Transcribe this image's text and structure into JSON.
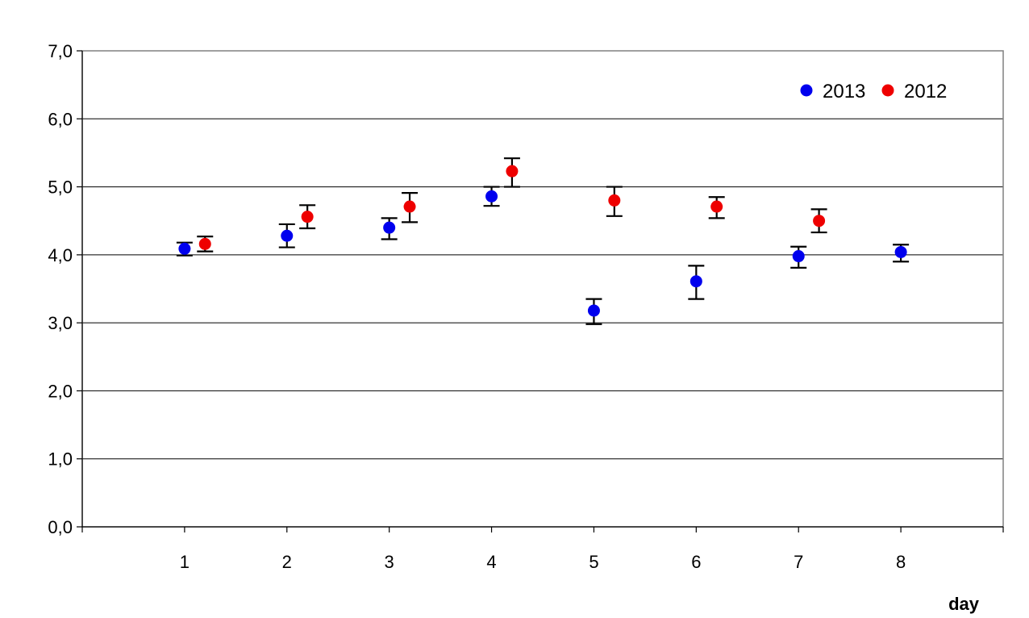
{
  "chart_data": {
    "type": "scatter",
    "xlabel": "day",
    "ylabel": "",
    "xlim": [
      0,
      9
    ],
    "ylim": [
      0,
      7
    ],
    "x_ticks": [
      1,
      2,
      3,
      4,
      5,
      6,
      7,
      8
    ],
    "y_ticks": [
      "0,0",
      "1,0",
      "2,0",
      "3,0",
      "4,0",
      "5,0",
      "6,0",
      "7,0"
    ],
    "grid": "horizontal",
    "legend_position": "top-right",
    "series": [
      {
        "name": "2013",
        "color": "#0000ee",
        "points": [
          {
            "x": 1,
            "y": 4.09,
            "lo": 3.99,
            "hi": 4.18
          },
          {
            "x": 2,
            "y": 4.28,
            "lo": 4.11,
            "hi": 4.45
          },
          {
            "x": 3,
            "y": 4.4,
            "lo": 4.23,
            "hi": 4.54
          },
          {
            "x": 4,
            "y": 4.86,
            "lo": 4.72,
            "hi": 5.0
          },
          {
            "x": 5,
            "y": 3.18,
            "lo": 2.98,
            "hi": 3.35
          },
          {
            "x": 6,
            "y": 3.61,
            "lo": 3.35,
            "hi": 3.84
          },
          {
            "x": 7,
            "y": 3.98,
            "lo": 3.81,
            "hi": 4.12
          },
          {
            "x": 8,
            "y": 4.04,
            "lo": 3.9,
            "hi": 4.15
          }
        ]
      },
      {
        "name": "2012",
        "color": "#ee0000",
        "points": [
          {
            "x": 1.2,
            "y": 4.16,
            "lo": 4.05,
            "hi": 4.27
          },
          {
            "x": 2.2,
            "y": 4.56,
            "lo": 4.39,
            "hi": 4.73
          },
          {
            "x": 3.2,
            "y": 4.71,
            "lo": 4.48,
            "hi": 4.91
          },
          {
            "x": 4.2,
            "y": 5.23,
            "lo": 5.0,
            "hi": 5.42
          },
          {
            "x": 5.2,
            "y": 4.8,
            "lo": 4.57,
            "hi": 5.0
          },
          {
            "x": 6.2,
            "y": 4.71,
            "lo": 4.54,
            "hi": 4.85
          },
          {
            "x": 7.2,
            "y": 4.5,
            "lo": 4.33,
            "hi": 4.67
          }
        ]
      }
    ]
  }
}
